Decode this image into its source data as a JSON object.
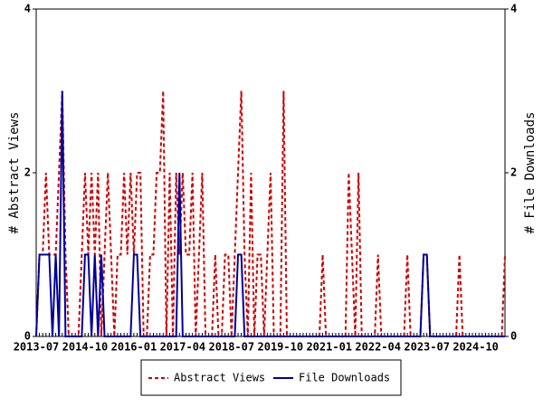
{
  "chart_data": {
    "type": "line",
    "categories": [
      "2013-07",
      null,
      null,
      null,
      null,
      null,
      null,
      null,
      null,
      null,
      null,
      null,
      null,
      null,
      null,
      "2014-10",
      null,
      null,
      null,
      null,
      null,
      null,
      null,
      null,
      null,
      null,
      null,
      null,
      null,
      null,
      "2016-01",
      null,
      null,
      null,
      null,
      null,
      null,
      null,
      null,
      null,
      null,
      null,
      null,
      null,
      null,
      "2017-04",
      null,
      null,
      null,
      null,
      null,
      null,
      null,
      null,
      null,
      null,
      null,
      null,
      null,
      null,
      "2018-07",
      null,
      null,
      null,
      null,
      null,
      null,
      null,
      null,
      null,
      null,
      null,
      null,
      null,
      null,
      "2019-10",
      null,
      null,
      null,
      null,
      null,
      null,
      null,
      null,
      null,
      null,
      null,
      null,
      null,
      null,
      "2021-01",
      null,
      null,
      null,
      null,
      null,
      null,
      null,
      null,
      null,
      null,
      null,
      null,
      null,
      null,
      "2022-04",
      null,
      null,
      null,
      null,
      null,
      null,
      null,
      null,
      null,
      null,
      null,
      null,
      null,
      null,
      "2023-07",
      null,
      null,
      null,
      null,
      null,
      null,
      null,
      null,
      null,
      null,
      null,
      null,
      null,
      null,
      "2024-10",
      null,
      null,
      null,
      null,
      null,
      null,
      null,
      null,
      null
    ],
    "y_label": "# Abstract Views",
    "y2_label": "# File Downloads",
    "ylim": [
      0,
      4
    ],
    "yticks": [
      0,
      2,
      4
    ],
    "y2lim": [
      0,
      4
    ],
    "y2ticks": [
      0,
      2,
      4
    ],
    "series": [
      {
        "name": "Abstract Views",
        "color": "#cc0000",
        "dash": true,
        "values": [
          0,
          1,
          1,
          2,
          1,
          1,
          1,
          2,
          3,
          1,
          0,
          0,
          0,
          0,
          1,
          2,
          1,
          2,
          1,
          2,
          0,
          1,
          2,
          1,
          0,
          1,
          1,
          2,
          1,
          2,
          1,
          2,
          2,
          0,
          0,
          1,
          1,
          2,
          2,
          3,
          0,
          2,
          0,
          2,
          1,
          2,
          1,
          1,
          2,
          0,
          1,
          2,
          0,
          0,
          0,
          1,
          0,
          0,
          1,
          1,
          0,
          1,
          2,
          3,
          1,
          0,
          2,
          0,
          1,
          1,
          0,
          1,
          2,
          0,
          0,
          0,
          3,
          0,
          0,
          0,
          0,
          0,
          0,
          0,
          0,
          0,
          0,
          0,
          1,
          0,
          0,
          0,
          0,
          0,
          0,
          0,
          2,
          1,
          0,
          2,
          0,
          0,
          0,
          0,
          0,
          1,
          0,
          0,
          0,
          0,
          0,
          0,
          0,
          0,
          1,
          0,
          0,
          0,
          0,
          1,
          1,
          0,
          0,
          0,
          0,
          0,
          0,
          0,
          0,
          0,
          1,
          0,
          0,
          0,
          0,
          0,
          0,
          0,
          0,
          0,
          0,
          0,
          0,
          0,
          1
        ]
      },
      {
        "name": "File Downloads",
        "color": "#000099",
        "axis": "y2",
        "values": [
          0,
          1,
          1,
          1,
          1,
          0,
          1,
          0,
          3,
          0,
          0,
          0,
          0,
          0,
          0,
          1,
          1,
          0,
          1,
          0,
          1,
          0,
          0,
          0,
          0,
          0,
          0,
          0,
          0,
          0,
          1,
          1,
          0,
          0,
          0,
          0,
          0,
          0,
          0,
          0,
          0,
          0,
          0,
          0,
          2,
          0,
          0,
          0,
          0,
          0,
          0,
          0,
          0,
          0,
          0,
          0,
          0,
          0,
          0,
          0,
          0,
          0,
          1,
          1,
          0,
          0,
          0,
          0,
          0,
          0,
          0,
          0,
          0,
          0,
          0,
          0,
          0,
          0,
          0,
          0,
          0,
          0,
          0,
          0,
          0,
          0,
          0,
          0,
          0,
          0,
          0,
          0,
          0,
          0,
          0,
          0,
          0,
          0,
          0,
          0,
          0,
          0,
          0,
          0,
          0,
          0,
          0,
          0,
          0,
          0,
          0,
          0,
          0,
          0,
          0,
          0,
          0,
          0,
          0,
          1,
          1,
          0,
          0,
          0,
          0,
          0,
          0,
          0,
          0,
          0,
          0,
          0,
          0,
          0,
          0,
          0,
          0,
          0,
          0,
          0,
          0,
          0,
          0,
          0,
          0
        ]
      }
    ]
  }
}
